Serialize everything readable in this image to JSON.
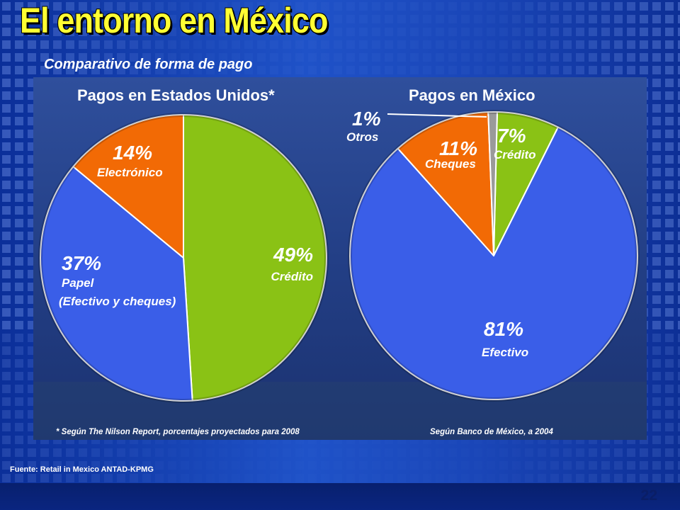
{
  "slide": {
    "title": "El entorno en México",
    "subtitle": "Comparativo de forma de pago",
    "source": "Fuente: Retail in Mexico ANTAD-KPMG",
    "page_number": "22"
  },
  "chart_data": [
    {
      "type": "pie",
      "title": "Pagos en Estados Unidos*",
      "footnote": "* Según The Nilson Report, porcentajes proyectados para 2008",
      "slices": [
        {
          "pct_label": "49%",
          "name": "Crédito",
          "value": 49,
          "color": "#8ac215"
        },
        {
          "pct_label": "37%",
          "name": "Papel",
          "name2": "(Efectivo y cheques)",
          "value": 37,
          "color": "#3a5ee8"
        },
        {
          "pct_label": "14%",
          "name": "Electrónico",
          "value": 14,
          "color": "#f26a05"
        }
      ]
    },
    {
      "type": "pie",
      "title": "Pagos en México",
      "footnote": "Según Banco de México, a 2004",
      "slices": [
        {
          "pct_label": "7%",
          "name": "Crédito",
          "value": 7,
          "color": "#8ac215"
        },
        {
          "pct_label": "81%",
          "name": "Efectivo",
          "value": 81,
          "color": "#3a5ee8"
        },
        {
          "pct_label": "11%",
          "name": "Cheques",
          "value": 11,
          "color": "#f26a05"
        },
        {
          "pct_label": "1%",
          "name": "Otros",
          "value": 1,
          "color": "#9a9a9a"
        }
      ]
    }
  ]
}
